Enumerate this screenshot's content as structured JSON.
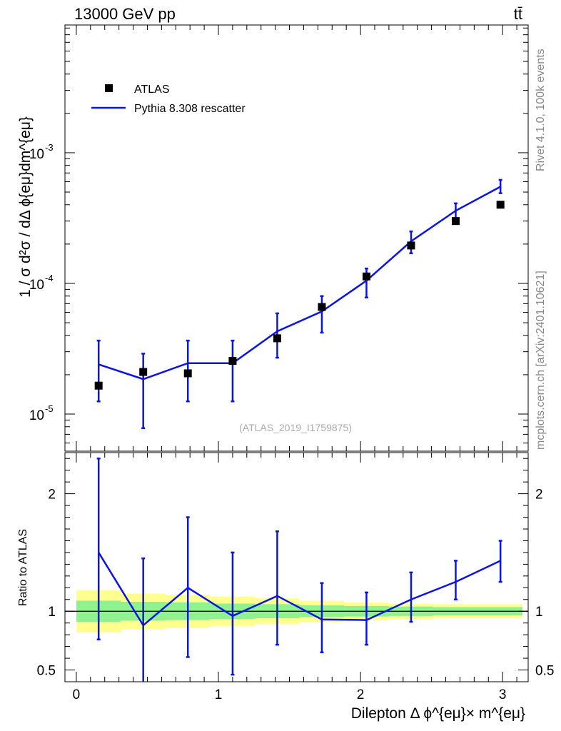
{
  "header": {
    "energy_label": "13000 GeV pp",
    "process_label": "tt̄"
  },
  "side_text": {
    "rivet": "Rivet 4.1.0,  100k events",
    "mcplots": "mcplots.cern.ch [arXiv:2401.10621]"
  },
  "watermark": "(ATLAS_2019_I1759875)",
  "legend": {
    "data_label": "ATLAS",
    "mc_label": "Pythia 8.308 rescatter"
  },
  "axes": {
    "main_ylabel": "1 / σ  d²σ / dΔ ϕ{eμ}dm^{eμ}",
    "ratio_ylabel": "Ratio to ATLAS",
    "xlabel": "Dilepton Δ ϕ^{eμ}× m^{eμ}"
  },
  "colors": {
    "mc": "#0a14e6",
    "data": "#000000",
    "band_inner": "#8ff28f",
    "band_outer": "#ffff8f"
  },
  "chart_data": [
    {
      "type": "scatter",
      "panel": "main",
      "yscale": "log",
      "xlim": [
        -0.08,
        3.18
      ],
      "ylim": [
        5.2e-06,
        0.0095
      ],
      "x_ticks": [
        0,
        1,
        2,
        3
      ],
      "y_tick_labels": [
        "10^{-5}",
        "10^{-4}",
        "10^{-3}"
      ],
      "x": [
        0.157,
        0.471,
        0.785,
        1.1,
        1.414,
        1.728,
        2.042,
        2.356,
        2.67,
        2.985
      ],
      "series": [
        {
          "name": "ATLAS",
          "style": "markers",
          "values": [
            1.65e-05,
            2.1e-05,
            2.05e-05,
            2.55e-05,
            3.8e-05,
            6.6e-05,
            0.000113,
            0.000195,
            0.0003,
            0.0004
          ]
        },
        {
          "name": "Pythia 8.308 rescatter",
          "style": "line",
          "values": [
            2.4e-05,
            1.85e-05,
            2.45e-05,
            2.45e-05,
            4.3e-05,
            6.1e-05,
            0.000105,
            0.00021,
            0.00036,
            0.00055
          ],
          "err_low": [
            1.25e-05,
            7.8e-06,
            1.25e-05,
            1.25e-05,
            2.7e-05,
            4.2e-05,
            7.8e-05,
            0.00017,
            0.00029,
            0.00049
          ],
          "err_high": [
            3.65e-05,
            2.9e-05,
            3.65e-05,
            3.65e-05,
            5.9e-05,
            8e-05,
            0.00013,
            0.00025,
            0.00041,
            0.00062
          ]
        }
      ]
    },
    {
      "type": "line",
      "panel": "ratio",
      "xlim": [
        -0.08,
        3.18
      ],
      "ylim": [
        0.4,
        2.35
      ],
      "y_ticks": [
        0.5,
        1,
        2
      ],
      "y_tick_labels": [
        "0.5",
        "1",
        "2"
      ],
      "x_ticks": [
        0,
        1,
        2,
        3
      ],
      "x_tick_labels": [
        "0",
        "1",
        "2",
        "3"
      ],
      "bin_edges": [
        0,
        0.314,
        0.628,
        0.942,
        1.256,
        1.57,
        1.884,
        2.198,
        2.512,
        2.826,
        3.14
      ],
      "band_inner_half": [
        0.09,
        0.08,
        0.075,
        0.065,
        0.06,
        0.05,
        0.045,
        0.04,
        0.035,
        0.035
      ],
      "band_outer_half": [
        0.18,
        0.15,
        0.14,
        0.125,
        0.11,
        0.09,
        0.075,
        0.065,
        0.06,
        0.06
      ],
      "x": [
        0.157,
        0.471,
        0.785,
        1.1,
        1.414,
        1.728,
        2.042,
        2.356,
        2.67,
        2.985
      ],
      "series": [
        {
          "name": "Pythia 8.308 rescatter / ATLAS",
          "values": [
            1.5,
            0.88,
            1.2,
            0.96,
            1.13,
            0.93,
            0.925,
            1.1,
            1.25,
            1.43
          ],
          "err_low": [
            0.76,
            0.34,
            0.61,
            0.46,
            0.715,
            0.65,
            0.715,
            0.91,
            1.1,
            1.25
          ],
          "err_high": [
            2.3,
            1.45,
            1.8,
            1.5,
            1.68,
            1.24,
            1.16,
            1.33,
            1.43,
            1.6
          ]
        }
      ]
    }
  ]
}
